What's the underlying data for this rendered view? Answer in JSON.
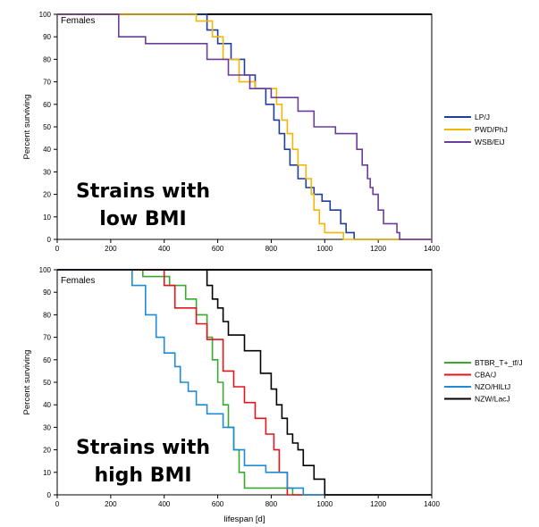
{
  "chart_data": [
    {
      "type": "line",
      "step": true,
      "title": "",
      "group_label": "Females",
      "overlay_text": [
        "Strains with",
        "low BMI"
      ],
      "xlabel": "",
      "ylabel": "Percent surviving",
      "xlim": [
        0,
        1400
      ],
      "ylim": [
        0,
        100
      ],
      "xticks": [
        0,
        200,
        400,
        600,
        800,
        1000,
        1200,
        1400
      ],
      "yticks": [
        0,
        10,
        20,
        30,
        40,
        50,
        60,
        70,
        80,
        90,
        100
      ],
      "legend_position": "right",
      "series": [
        {
          "name": "LP/J",
          "color": "#1f3d99",
          "x": [
            0,
            450,
            560,
            600,
            650,
            700,
            740,
            780,
            810,
            830,
            850,
            870,
            900,
            930,
            960,
            990,
            1020,
            1060,
            1080,
            1110,
            1400
          ],
          "y": [
            100,
            100,
            93,
            87,
            80,
            73,
            67,
            60,
            53,
            47,
            40,
            33,
            27,
            23,
            20,
            17,
            13,
            7,
            3,
            0,
            0
          ]
        },
        {
          "name": "PWD/PhJ",
          "color": "#f2b705",
          "x": [
            0,
            440,
            520,
            580,
            620,
            680,
            740,
            820,
            840,
            860,
            880,
            900,
            930,
            950,
            960,
            980,
            1000,
            1070,
            1400
          ],
          "y": [
            100,
            100,
            97,
            90,
            80,
            70,
            67,
            60,
            53,
            47,
            40,
            33,
            27,
            20,
            13,
            7,
            3,
            0,
            0
          ]
        },
        {
          "name": "WSB/EiJ",
          "color": "#6a3d9a",
          "x": [
            0,
            215,
            230,
            330,
            560,
            640,
            720,
            800,
            900,
            960,
            1040,
            1120,
            1140,
            1160,
            1170,
            1180,
            1200,
            1220,
            1270,
            1280,
            1400
          ],
          "y": [
            100,
            100,
            90,
            87,
            80,
            73,
            67,
            63,
            57,
            50,
            47,
            40,
            33,
            27,
            23,
            20,
            13,
            7,
            3,
            0,
            0
          ]
        }
      ]
    },
    {
      "type": "line",
      "step": true,
      "title": "",
      "group_label": "Females",
      "overlay_text": [
        "Strains with",
        "high BMI"
      ],
      "xlabel": "lifespan [d]",
      "ylabel": "Percent surviving",
      "xlim": [
        0,
        1400
      ],
      "ylim": [
        0,
        100
      ],
      "xticks": [
        0,
        200,
        400,
        600,
        800,
        1000,
        1200,
        1400
      ],
      "yticks": [
        0,
        10,
        20,
        30,
        40,
        50,
        60,
        70,
        80,
        90,
        100
      ],
      "legend_position": "right",
      "series": [
        {
          "name": "BTBR_T+_tf/J",
          "color": "#3aa832",
          "x": [
            0,
            230,
            320,
            420,
            480,
            520,
            560,
            580,
            600,
            620,
            640,
            660,
            680,
            700,
            760,
            880,
            1400
          ],
          "y": [
            100,
            100,
            97,
            93,
            87,
            80,
            70,
            60,
            50,
            40,
            30,
            20,
            10,
            3,
            3,
            0,
            0
          ]
        },
        {
          "name": "CBA/J",
          "color": "#e0161c",
          "x": [
            0,
            320,
            400,
            440,
            520,
            560,
            620,
            660,
            700,
            740,
            780,
            810,
            830,
            860,
            1400
          ],
          "y": [
            100,
            100,
            93,
            83,
            76,
            69,
            55,
            48,
            41,
            34,
            27,
            20,
            10,
            0,
            0
          ]
        },
        {
          "name": "NZO/HILtJ",
          "color": "#1f8bd4",
          "x": [
            0,
            230,
            280,
            330,
            370,
            400,
            440,
            460,
            490,
            520,
            560,
            620,
            660,
            700,
            780,
            860,
            920,
            1400
          ],
          "y": [
            100,
            100,
            93,
            80,
            70,
            63,
            57,
            50,
            46,
            40,
            36,
            30,
            20,
            13,
            10,
            3,
            0,
            0
          ]
        },
        {
          "name": "NZW/LacJ",
          "color": "#000000",
          "x": [
            0,
            500,
            560,
            580,
            600,
            620,
            640,
            700,
            760,
            800,
            820,
            840,
            860,
            880,
            900,
            920,
            960,
            1000,
            1400
          ],
          "y": [
            100,
            100,
            93,
            87,
            83,
            77,
            71,
            64,
            54,
            47,
            40,
            34,
            27,
            23,
            20,
            13,
            7,
            0,
            0
          ]
        }
      ]
    }
  ]
}
